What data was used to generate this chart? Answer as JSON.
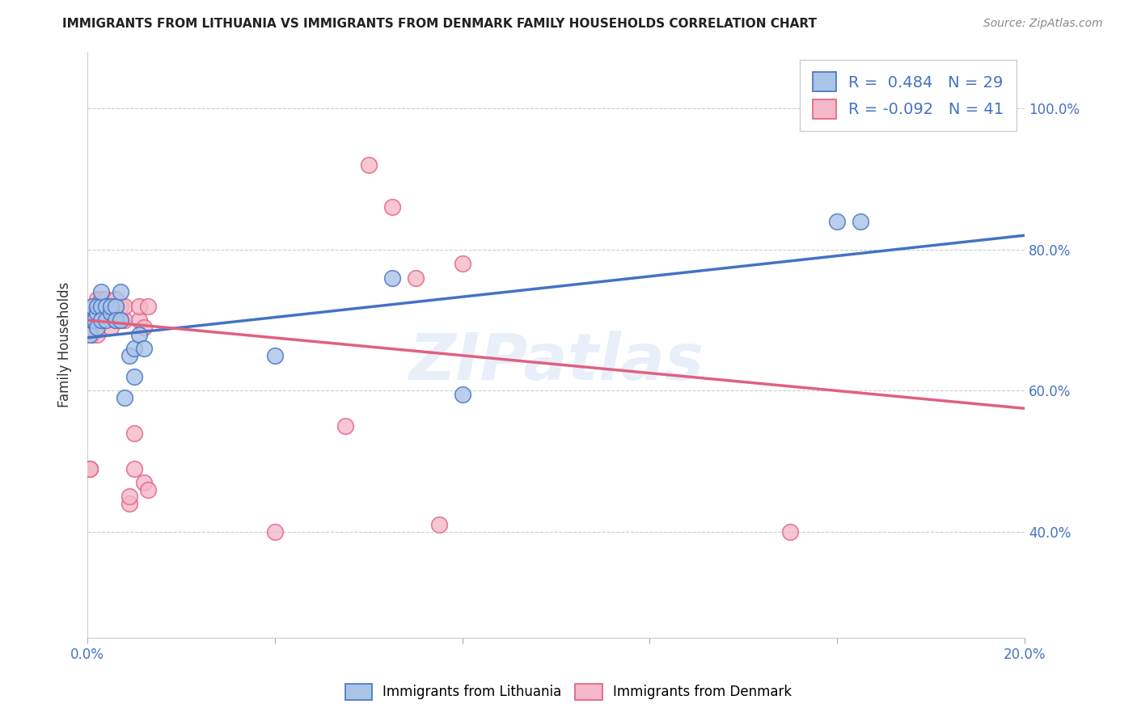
{
  "title": "IMMIGRANTS FROM LITHUANIA VS IMMIGRANTS FROM DENMARK FAMILY HOUSEHOLDS CORRELATION CHART",
  "source": "Source: ZipAtlas.com",
  "ylabel": "Family Households",
  "y_ticks": [
    0.4,
    0.6,
    0.8,
    1.0
  ],
  "y_tick_labels": [
    "40.0%",
    "60.0%",
    "80.0%",
    "100.0%"
  ],
  "xlim": [
    0.0,
    0.2
  ],
  "ylim": [
    0.25,
    1.08
  ],
  "lithuania_color": "#aac4e8",
  "denmark_color": "#f4b8c8",
  "line_lithuania_color": "#4472c4",
  "line_denmark_color": "#e06080",
  "R_lithuania": 0.484,
  "N_lithuania": 29,
  "R_denmark": -0.092,
  "N_denmark": 41,
  "watermark": "ZIPatlas",
  "lithuania_x": [
    0.0005,
    0.001,
    0.001,
    0.0015,
    0.002,
    0.002,
    0.002,
    0.003,
    0.003,
    0.003,
    0.004,
    0.004,
    0.005,
    0.005,
    0.006,
    0.006,
    0.007,
    0.007,
    0.008,
    0.009,
    0.01,
    0.01,
    0.011,
    0.012,
    0.04,
    0.065,
    0.08,
    0.16,
    0.165
  ],
  "lithuania_y": [
    0.68,
    0.7,
    0.72,
    0.7,
    0.71,
    0.72,
    0.69,
    0.72,
    0.74,
    0.7,
    0.7,
    0.72,
    0.71,
    0.72,
    0.72,
    0.7,
    0.74,
    0.7,
    0.59,
    0.65,
    0.66,
    0.62,
    0.68,
    0.66,
    0.65,
    0.76,
    0.595,
    0.84,
    0.84
  ],
  "denmark_x": [
    0.0005,
    0.0005,
    0.001,
    0.001,
    0.0015,
    0.002,
    0.002,
    0.002,
    0.003,
    0.003,
    0.004,
    0.004,
    0.005,
    0.005,
    0.005,
    0.006,
    0.006,
    0.006,
    0.007,
    0.007,
    0.008,
    0.008,
    0.009,
    0.009,
    0.01,
    0.01,
    0.011,
    0.011,
    0.012,
    0.012,
    0.013,
    0.013,
    0.04,
    0.055,
    0.06,
    0.065,
    0.07,
    0.075,
    0.08,
    0.15,
    0.16
  ],
  "denmark_y": [
    0.49,
    0.49,
    0.68,
    0.7,
    0.71,
    0.7,
    0.73,
    0.68,
    0.7,
    0.73,
    0.71,
    0.73,
    0.69,
    0.71,
    0.72,
    0.71,
    0.73,
    0.7,
    0.7,
    0.72,
    0.7,
    0.72,
    0.44,
    0.45,
    0.49,
    0.54,
    0.7,
    0.72,
    0.47,
    0.69,
    0.72,
    0.46,
    0.4,
    0.55,
    0.92,
    0.86,
    0.76,
    0.41,
    0.78,
    0.4,
    1.0
  ],
  "line_lith_x0": 0.0,
  "line_lith_y0": 0.675,
  "line_lith_x1": 0.2,
  "line_lith_y1": 0.82,
  "line_den_x0": 0.0,
  "line_den_y0": 0.7,
  "line_den_x1": 0.2,
  "line_den_y1": 0.575
}
